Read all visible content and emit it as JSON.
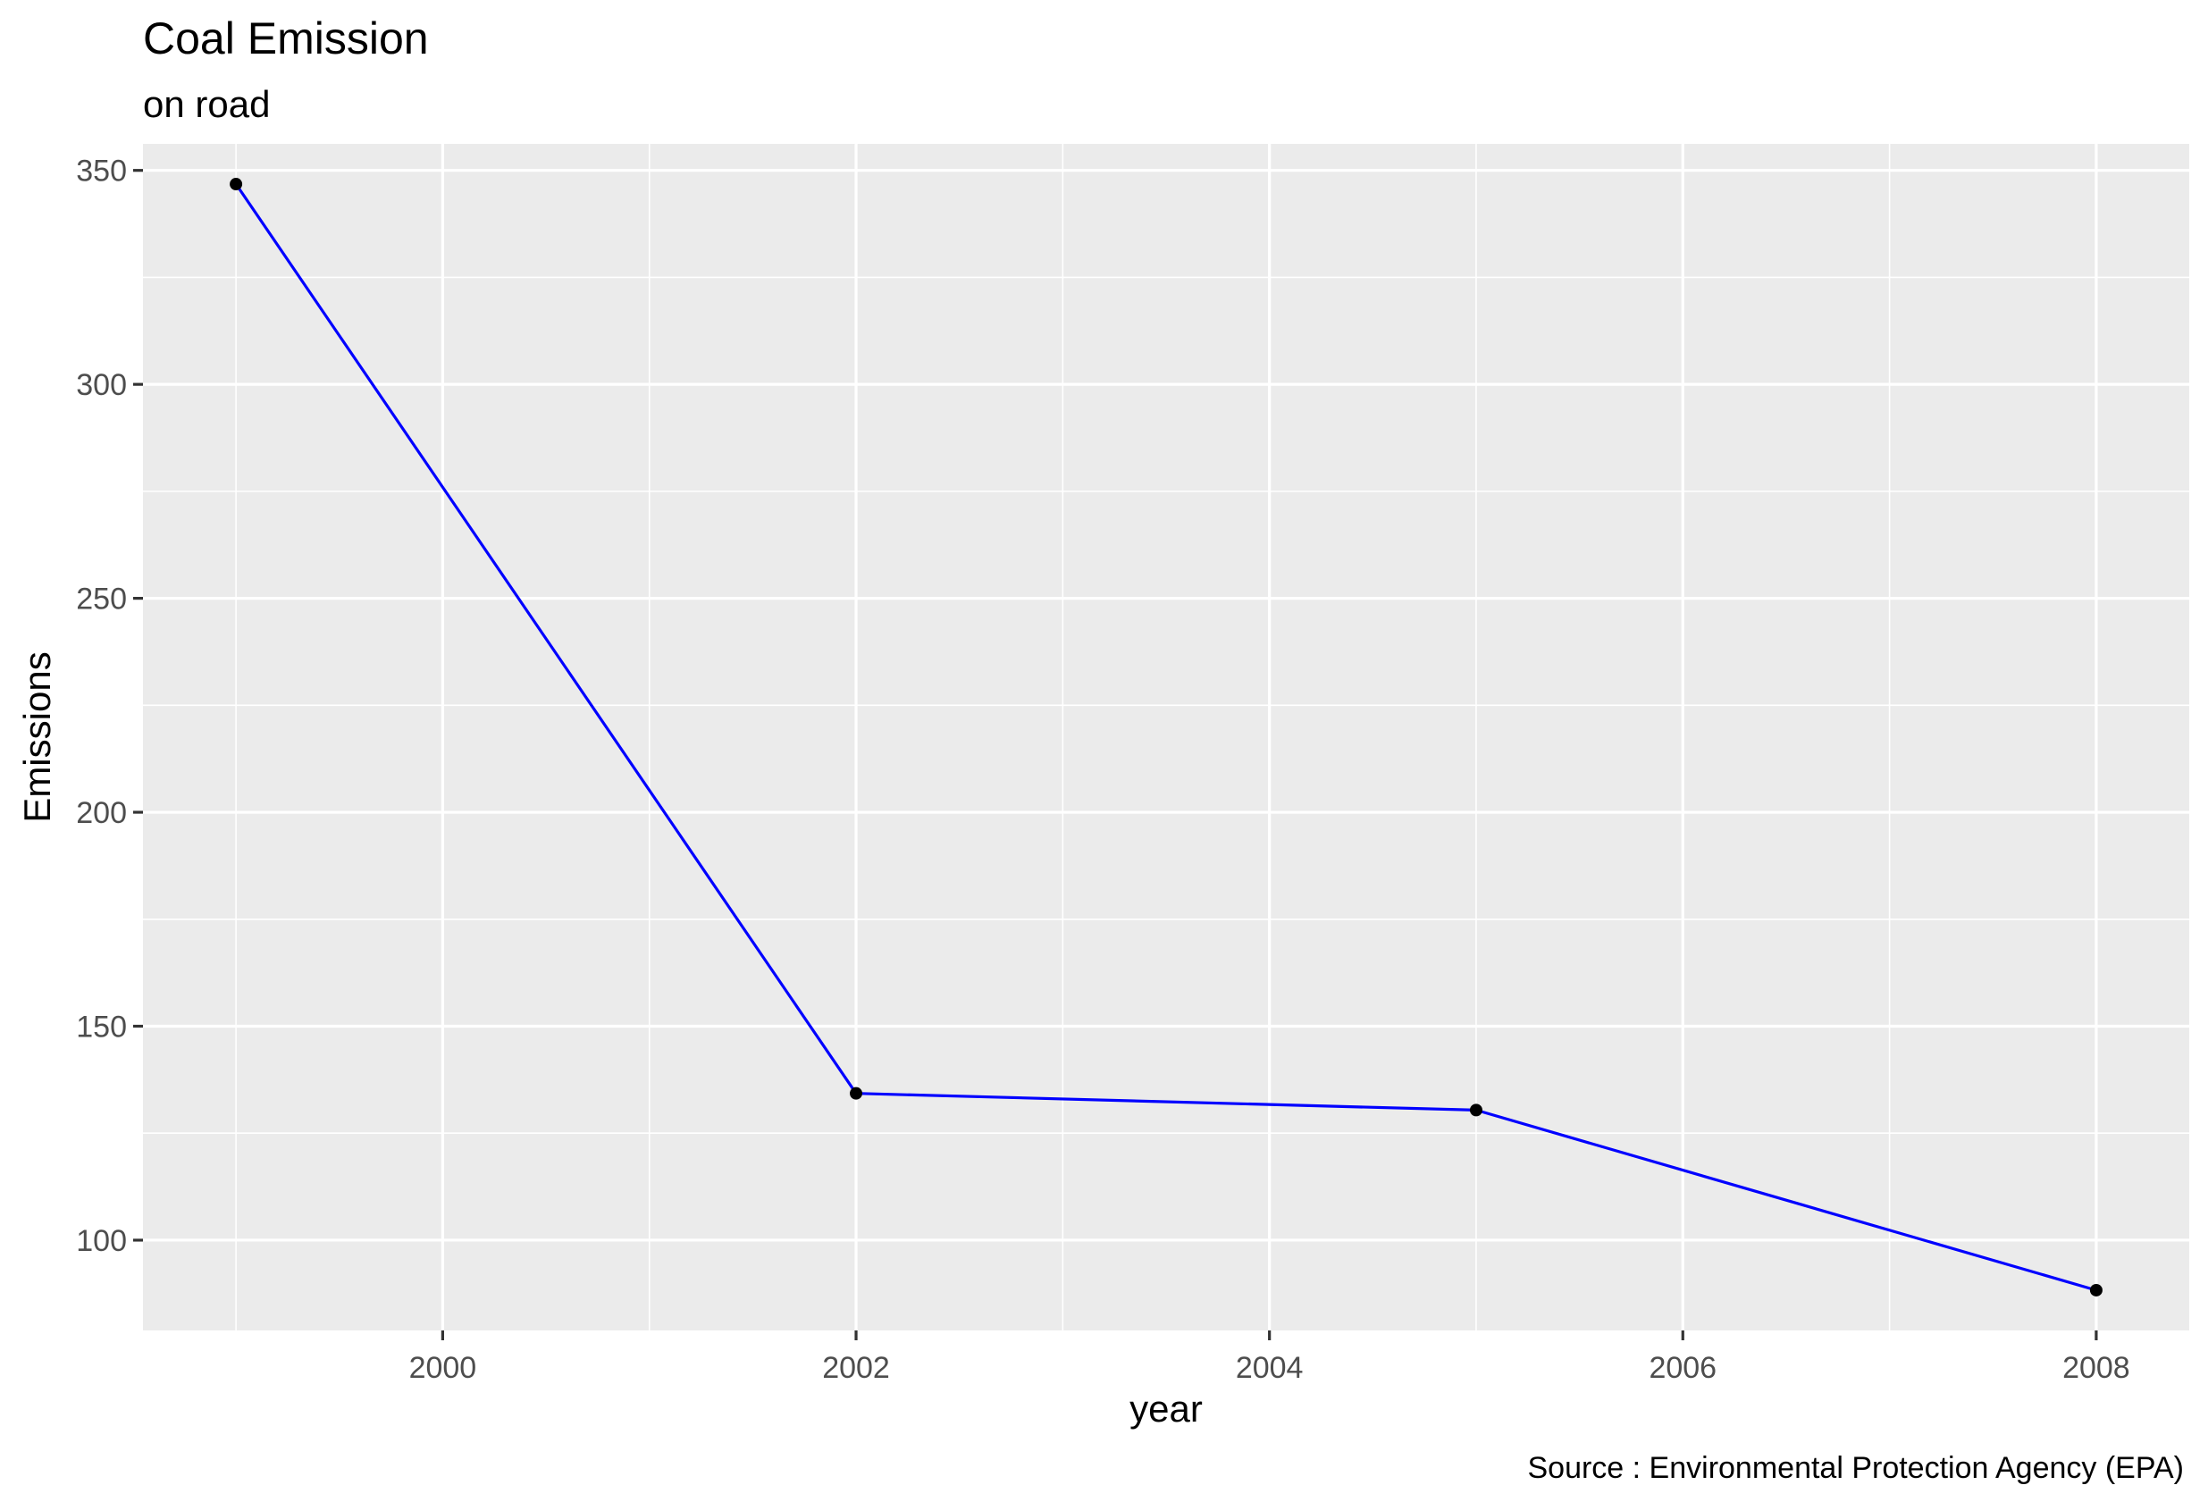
{
  "chart_data": {
    "type": "line",
    "title": "Coal Emission",
    "subtitle": "on road",
    "caption": "Source : Environmental Protection Agency (EPA)",
    "xlabel": "year",
    "ylabel": "Emissions",
    "x": [
      1999,
      2002,
      2005,
      2008
    ],
    "series": [
      {
        "values": [
          346.8,
          134.3,
          130.4,
          88.3
        ]
      }
    ],
    "xlim": [
      1998.55,
      2008.45
    ],
    "ylim": [
      78.9,
      356.2
    ],
    "xticks": [
      2000,
      2002,
      2004,
      2006,
      2008
    ],
    "xtick_labels": [
      "2000",
      "2002",
      "2004",
      "2006",
      "2008"
    ],
    "yticks": [
      100,
      150,
      200,
      250,
      300,
      350
    ],
    "ytick_labels": [
      "100",
      "150",
      "200",
      "250",
      "300",
      "350"
    ],
    "grid": true,
    "line_color": "#0000ff",
    "point_color": "#000000",
    "panel_background": "#ebebeb",
    "grid_color": "#ffffff"
  }
}
